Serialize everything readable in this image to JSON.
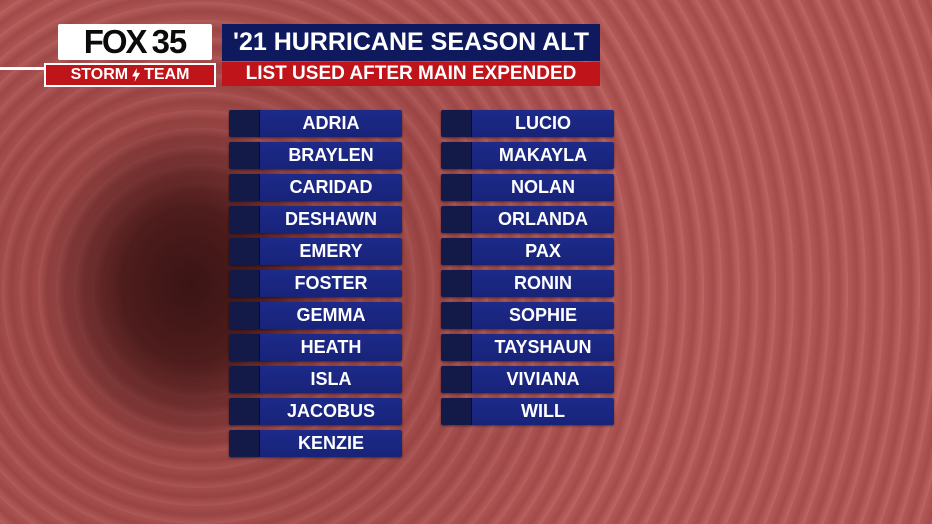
{
  "header": {
    "logo_top": "FOX",
    "logo_number": "35",
    "logo_left": "STORM",
    "logo_right": "TEAM",
    "title": "'21 HURRICANE SEASON ALT",
    "subtitle": "LIST USED AFTER MAIN EXPENDED"
  },
  "names": {
    "columns": [
      [
        "ADRIA",
        "BRAYLEN",
        "CARIDAD",
        "DESHAWN",
        "EMERY",
        "FOSTER",
        "GEMMA",
        "HEATH",
        "ISLA",
        "JACOBUS",
        "KENZIE"
      ],
      [
        "LUCIO",
        "MAKAYLA",
        "NOLAN",
        "ORLANDA",
        "PAX",
        "RONIN",
        "SOPHIE",
        "TAYSHAUN",
        "VIVIANA",
        "WILL"
      ]
    ]
  }
}
